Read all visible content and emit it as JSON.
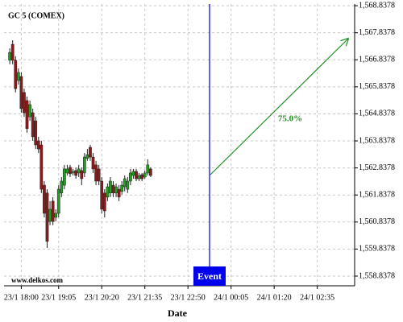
{
  "chart_data": {
    "type": "candlestick",
    "title": "GC 5 (COMEX)",
    "x_label": "Date",
    "watermark": "www.delkos.com",
    "event_label": "Event",
    "forecast_label": "75.0%",
    "up_color": "#1f9e1f",
    "down_color": "#8b1a1a",
    "grid": true,
    "xlim": [
      "23/1 17:30",
      "24/1 03:40"
    ],
    "xticks": [
      "23/1 18:00",
      "23/1 19:05",
      "23/1 20:20",
      "23/1 21:35",
      "23/1 22:50",
      "24/1 00:05",
      "24/1 01:20",
      "24/1 02:35"
    ],
    "ylim": [
      1558.48,
      1568.9
    ],
    "yticks": [
      {
        "value": 1558.8378,
        "label": "1,558.8378"
      },
      {
        "value": 1559.8378,
        "label": "1,559.8378"
      },
      {
        "value": 1560.8378,
        "label": "1,560.8378"
      },
      {
        "value": 1561.8378,
        "label": "1,561.8378"
      },
      {
        "value": 1562.8378,
        "label": "1,562.8378"
      },
      {
        "value": 1563.8378,
        "label": "1,563.8378"
      },
      {
        "value": 1564.8378,
        "label": "1,564.8378"
      },
      {
        "value": 1565.8378,
        "label": "1,565.8378"
      },
      {
        "value": 1566.8378,
        "label": "1,566.8378"
      },
      {
        "value": 1567.8378,
        "label": "1,567.8378"
      },
      {
        "value": 1568.8378,
        "label": "1,568.8378"
      }
    ],
    "x": [
      "23/1 17:40",
      "23/1 17:45",
      "23/1 17:50",
      "23/1 17:55",
      "23/1 18:00",
      "23/1 18:05",
      "23/1 18:10",
      "23/1 18:15",
      "23/1 18:20",
      "23/1 18:25",
      "23/1 18:30",
      "23/1 18:35",
      "23/1 18:40",
      "23/1 18:45",
      "23/1 18:50",
      "23/1 18:55",
      "23/1 19:00",
      "23/1 19:05",
      "23/1 19:10",
      "23/1 19:15",
      "23/1 19:20",
      "23/1 19:25",
      "23/1 19:30",
      "23/1 19:35",
      "23/1 19:40",
      "23/1 19:45",
      "23/1 19:50",
      "23/1 19:55",
      "23/1 20:00",
      "23/1 20:05",
      "23/1 20:10",
      "23/1 20:15",
      "23/1 20:20",
      "23/1 20:25",
      "23/1 20:30",
      "23/1 20:35",
      "23/1 20:40",
      "23/1 20:45",
      "23/1 20:50",
      "23/1 20:55",
      "23/1 21:00",
      "23/1 21:05",
      "23/1 21:10",
      "23/1 21:15",
      "23/1 21:20",
      "23/1 21:25",
      "23/1 21:30",
      "23/1 21:35",
      "23/1 21:40",
      "23/1 21:45"
    ],
    "open": [
      1566.82,
      1567.41,
      1566.82,
      1566.07,
      1566.22,
      1565.63,
      1565.33,
      1564.73,
      1564.88,
      1564.58,
      1563.84,
      1563.69,
      1562.2,
      1561.91,
      1560.86,
      1561.61,
      1561.01,
      1561.16,
      1561.91,
      1562.2,
      1562.65,
      1562.86,
      1562.65,
      1562.74,
      1562.65,
      1562.74,
      1562.65,
      1563.19,
      1563.6,
      1563.24,
      1562.95,
      1562.8,
      1562.35,
      1561.91,
      1561.76,
      1561.91,
      1562.2,
      1561.91,
      1562.05,
      1561.97,
      1562.14,
      1562.05,
      1562.35,
      1562.56,
      1562.71,
      1562.44,
      1562.59,
      1562.5,
      1562.65,
      1562.8
    ],
    "high": [
      1567.26,
      1567.56,
      1566.97,
      1566.52,
      1566.37,
      1565.77,
      1565.48,
      1565.33,
      1565.03,
      1564.73,
      1563.99,
      1563.84,
      1562.35,
      1562.05,
      1561.61,
      1561.76,
      1561.31,
      1562.2,
      1562.5,
      1562.95,
      1562.95,
      1562.95,
      1562.8,
      1562.86,
      1562.95,
      1562.86,
      1563.39,
      1563.54,
      1563.69,
      1563.39,
      1563.1,
      1562.95,
      1562.5,
      1562.05,
      1562.26,
      1562.5,
      1562.35,
      1562.26,
      1562.2,
      1562.35,
      1562.56,
      1562.5,
      1562.8,
      1562.8,
      1562.8,
      1562.65,
      1562.65,
      1562.74,
      1563.16,
      1562.86
    ],
    "low": [
      1566.67,
      1566.67,
      1565.63,
      1565.92,
      1564.88,
      1564.73,
      1564.14,
      1564.58,
      1563.84,
      1563.54,
      1563.39,
      1561.91,
      1561.01,
      1559.88,
      1560.72,
      1560.72,
      1560.86,
      1561.01,
      1561.76,
      1562.05,
      1562.56,
      1562.5,
      1562.56,
      1562.44,
      1562.5,
      1562.2,
      1562.5,
      1563.1,
      1563.1,
      1562.65,
      1562.2,
      1562.2,
      1561.16,
      1561.01,
      1561.61,
      1561.76,
      1561.76,
      1561.76,
      1561.61,
      1561.85,
      1561.97,
      1561.91,
      1562.2,
      1562.44,
      1562.35,
      1562.35,
      1562.35,
      1562.44,
      1562.56,
      1562.5
    ],
    "close": [
      1567.11,
      1566.82,
      1565.77,
      1566.37,
      1565.03,
      1564.88,
      1564.29,
      1565.18,
      1563.99,
      1563.69,
      1563.54,
      1562.05,
      1561.16,
      1560.12,
      1561.31,
      1560.86,
      1561.16,
      1562.05,
      1562.35,
      1562.8,
      1562.8,
      1562.62,
      1562.71,
      1562.56,
      1562.8,
      1562.44,
      1563.24,
      1563.33,
      1563.24,
      1562.8,
      1562.35,
      1562.35,
      1561.31,
      1561.25,
      1562.14,
      1562.35,
      1561.91,
      1562.14,
      1561.76,
      1562.2,
      1562.44,
      1562.35,
      1562.65,
      1562.71,
      1562.44,
      1562.56,
      1562.44,
      1562.65,
      1562.95,
      1562.56
    ]
  }
}
